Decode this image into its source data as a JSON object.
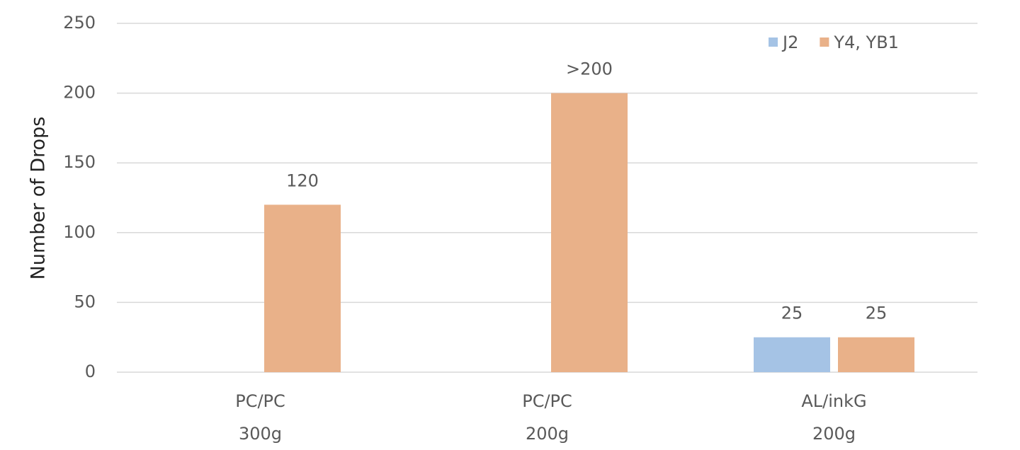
{
  "chart_data": {
    "type": "bar",
    "y_label": "Number of Drops",
    "categories": [
      [
        "PC/PC",
        "300g"
      ],
      [
        "PC/PC",
        "200g"
      ],
      [
        "AL/inkG",
        "200g"
      ]
    ],
    "series": [
      {
        "name": "J2",
        "color": "#a5c3e5",
        "values": [
          null,
          null,
          25
        ]
      },
      {
        "name": "Y4, YB1",
        "color": "#e9b189",
        "values": [
          120,
          200,
          25
        ],
        "value_labels": [
          "120",
          ">200",
          "25"
        ]
      }
    ],
    "ylim": [
      0,
      250
    ],
    "yticks": [
      0,
      50,
      100,
      150,
      200,
      250
    ],
    "grid": true,
    "legend": "top-right"
  }
}
